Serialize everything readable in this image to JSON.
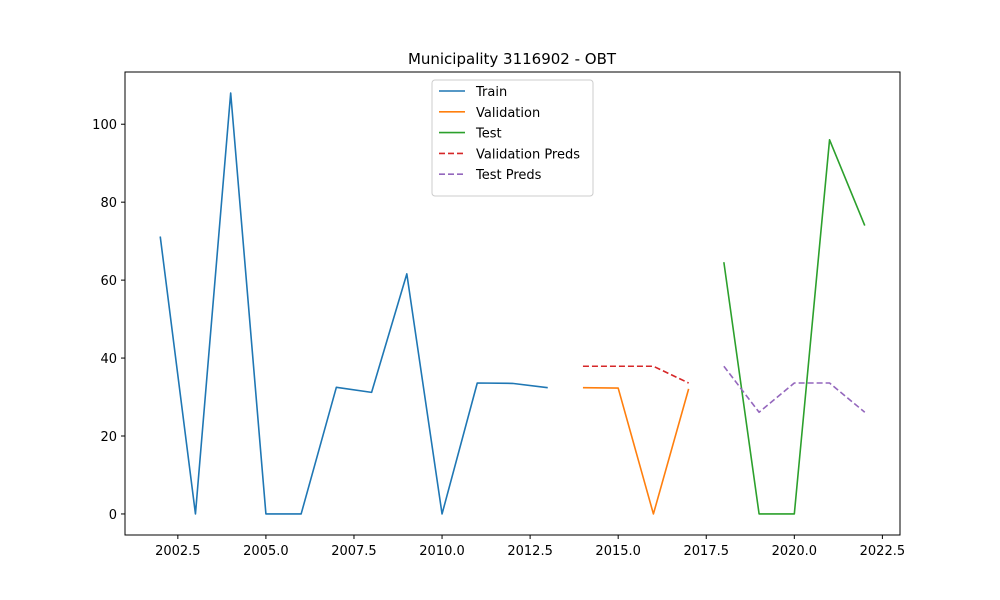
{
  "chart_data": {
    "type": "line",
    "title": "Municipality 3116902 - OBT",
    "xlabel": "",
    "ylabel": "",
    "xlim": [
      2001.0,
      2023.0
    ],
    "ylim": [
      -5.4,
      113.4
    ],
    "x_ticks": [
      2002.5,
      2005.0,
      2007.5,
      2010.0,
      2012.5,
      2015.0,
      2017.5,
      2020.0,
      2022.5
    ],
    "x_tick_labels": [
      "2002.5",
      "2005.0",
      "2007.5",
      "2010.0",
      "2012.5",
      "2015.0",
      "2017.5",
      "2020.0",
      "2022.5"
    ],
    "y_ticks": [
      0,
      20,
      40,
      60,
      80,
      100
    ],
    "y_tick_labels": [
      "0",
      "20",
      "40",
      "60",
      "80",
      "100"
    ],
    "grid": false,
    "legend_position": "top-center",
    "series": [
      {
        "name": "Train",
        "color": "#1f77b4",
        "dash": "solid",
        "x": [
          2002,
          2003,
          2004,
          2005,
          2006,
          2007,
          2008,
          2009,
          2010,
          2011,
          2012,
          2013
        ],
        "values": [
          71.2,
          0,
          108,
          0,
          0,
          32.5,
          31.2,
          61.6,
          0,
          33.6,
          33.5,
          32.4
        ]
      },
      {
        "name": "Validation",
        "color": "#ff7f0e",
        "dash": "solid",
        "x": [
          2014,
          2015,
          2016,
          2017
        ],
        "values": [
          32.4,
          32.3,
          0,
          32.1
        ]
      },
      {
        "name": "Test",
        "color": "#2ca02c",
        "dash": "solid",
        "x": [
          2018,
          2019,
          2020,
          2021,
          2022
        ],
        "values": [
          64.6,
          0,
          0,
          96,
          74
        ]
      },
      {
        "name": "Validation Preds",
        "color": "#d62728",
        "dash": "dashed",
        "x": [
          2014,
          2015,
          2016,
          2017
        ],
        "values": [
          37.9,
          37.9,
          37.9,
          33.6
        ]
      },
      {
        "name": "Test Preds",
        "color": "#9467bd",
        "dash": "dashed",
        "x": [
          2018,
          2019,
          2020,
          2021,
          2022
        ],
        "values": [
          37.9,
          26.1,
          33.6,
          33.6,
          26.1
        ]
      }
    ]
  }
}
